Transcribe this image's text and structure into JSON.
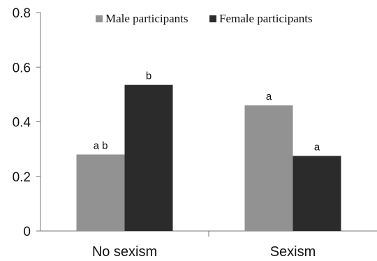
{
  "chart_data": {
    "type": "bar",
    "categories": [
      "No sexism",
      "Sexism"
    ],
    "series": [
      {
        "name": "Male participants",
        "values": [
          0.28,
          0.46
        ],
        "labels": [
          "a b",
          "a"
        ],
        "color": "#929292"
      },
      {
        "name": "Female participants",
        "values": [
          0.535,
          0.275
        ],
        "labels": [
          "b",
          "a"
        ],
        "color": "#2b2b2b"
      }
    ],
    "ylim": [
      0,
      0.8
    ],
    "yticks": [
      "0",
      "0.2",
      "0.4",
      "0.6",
      "0.8"
    ],
    "ytick_values": [
      0,
      0.2,
      0.4,
      0.6,
      0.8
    ],
    "legend_position": "top-center",
    "grid": false
  }
}
